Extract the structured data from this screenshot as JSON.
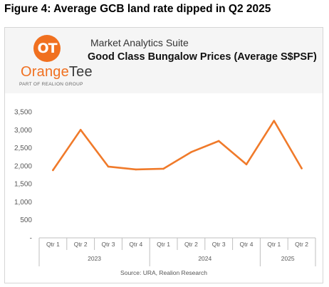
{
  "figure_title": "Figure 4: Average GCB land rate dipped in Q2 2025",
  "brand": {
    "logo_mark": "OT",
    "name_part1": "Orange",
    "name_part2": "Tee",
    "tagline": "PART OF REALION GROUP",
    "accent_color": "#f07020"
  },
  "suite_label": "Market Analytics Suite",
  "source": "Source: URA, Realion Research",
  "chart_data": {
    "type": "line",
    "title": "Good Class Bungalow Prices (Average S$PSF)",
    "categories": [
      "Qtr 1",
      "Qtr 2",
      "Qtr 3",
      "Qtr 4",
      "Qtr 1",
      "Qtr 2",
      "Qtr 3",
      "Qtr 4",
      "Qtr 1",
      "Qtr 2"
    ],
    "groups": [
      {
        "label": "2023",
        "count": 4
      },
      {
        "label": "2024",
        "count": 4
      },
      {
        "label": "2025",
        "count": 2
      }
    ],
    "series": [
      {
        "color": "#f07a2a",
        "values": [
          1880,
          3000,
          1980,
          1900,
          1920,
          2380,
          2690,
          2040,
          3250,
          1930
        ]
      }
    ],
    "ylim": [
      0,
      3500
    ],
    "yticks": [
      0,
      500,
      1000,
      1500,
      2000,
      2500,
      3000,
      3500
    ],
    "ytick_labels": [
      "-",
      "500",
      "1,000",
      "1,500",
      "2,000",
      "2,500",
      "3,000",
      "3,500"
    ],
    "grid": false,
    "legend": "none"
  }
}
